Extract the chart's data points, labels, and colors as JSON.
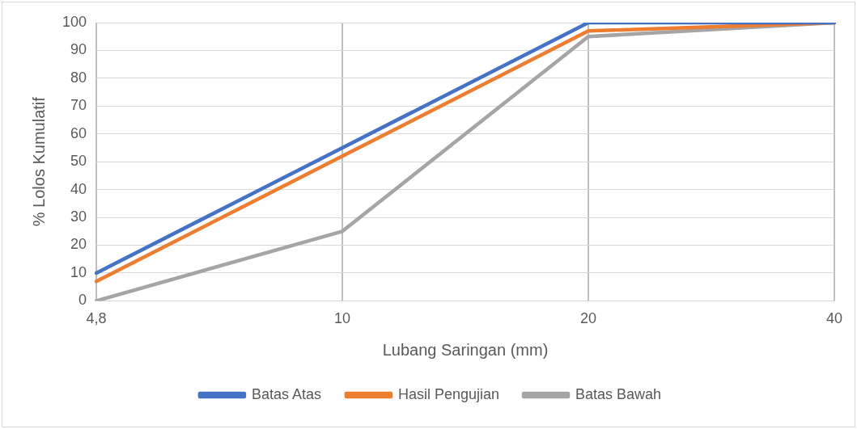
{
  "chart_data": {
    "type": "line",
    "xlabel": "Lubang Saringan (mm)",
    "ylabel": "% Lolos Kumulatif",
    "categories": [
      "4,8",
      "10",
      "20",
      "40"
    ],
    "series": [
      {
        "name": "Batas Atas",
        "color": "#4472c4",
        "values": [
          10,
          55,
          100,
          100
        ]
      },
      {
        "name": "Hasil Pengujian",
        "color": "#ed7d31",
        "values": [
          7,
          52,
          97,
          100
        ]
      },
      {
        "name": "Batas Bawah",
        "color": "#a5a5a5",
        "values": [
          0,
          25,
          95,
          100
        ]
      }
    ],
    "ylim": [
      0,
      100
    ],
    "yticks": [
      0,
      10,
      20,
      30,
      40,
      50,
      60,
      70,
      80,
      90,
      100
    ],
    "grid": true,
    "legend": "bottom",
    "marker": "none",
    "line_style": "solid"
  }
}
